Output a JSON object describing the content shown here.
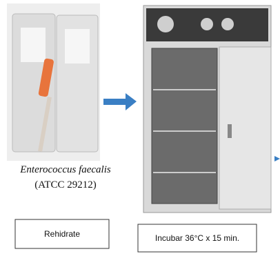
{
  "labels": {
    "organism": "Enterococcus faecalis",
    "strain": "(ATCC 29212)"
  },
  "steps": [
    "Rehidrate",
    "Incubar 36°C x 15 min."
  ]
}
